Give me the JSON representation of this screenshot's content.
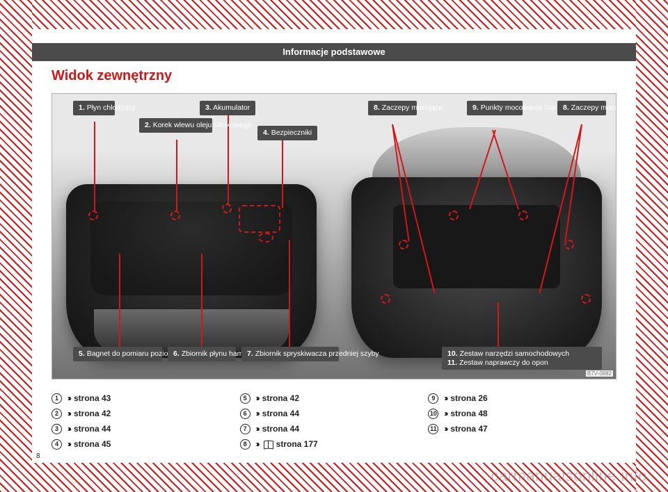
{
  "header": {
    "title": "Informacje podstawowe"
  },
  "section_title": "Widok zewnętrzny",
  "figure_id": "B7V-0882",
  "labels": {
    "l1": {
      "num": "1.",
      "text": "Płyn\nchłodzący"
    },
    "l2": {
      "num": "2.",
      "text": "Korek wlewu\noleju silnikowego"
    },
    "l3": {
      "num": "3.",
      "text": "Akumulator"
    },
    "l4": {
      "num": "4.",
      "text": "Bezpieczniki"
    },
    "l5": {
      "num": "5.",
      "text": "Bagnet do pomiaru\npoziomu oleju"
    },
    "l6": {
      "num": "6.",
      "text": "Zbiornik płynu\nhamulcowego"
    },
    "l7": {
      "num": "7.",
      "text": "Zbiornik spryskiwacza\nprzedniej szyby"
    },
    "l8": {
      "num": "8.",
      "text": "Zaczepy\nmocujące"
    },
    "l9": {
      "num": "9.",
      "text": "Punkty\nmocowania\nTop Tether"
    },
    "l10": {
      "num": "10.",
      "text": "Zestaw narzędzi samochodowych"
    },
    "l11": {
      "num": "11.",
      "text": "Zestaw naprawczy do opon"
    }
  },
  "xrefs": {
    "col1": [
      {
        "n": "1",
        "text": "strona 43"
      },
      {
        "n": "2",
        "text": "strona 42"
      },
      {
        "n": "3",
        "text": "strona 44"
      },
      {
        "n": "4",
        "text": "strona 45"
      }
    ],
    "col2": [
      {
        "n": "5",
        "text": "strona 42"
      },
      {
        "n": "6",
        "text": "strona 44"
      },
      {
        "n": "7",
        "text": "strona 44"
      },
      {
        "n": "8",
        "text": "strona 177",
        "book": true
      }
    ],
    "col3": [
      {
        "n": "9",
        "text": "strona 26"
      },
      {
        "n": "10",
        "text": "strona 48"
      },
      {
        "n": "11",
        "text": "strona 47"
      }
    ]
  },
  "page_number": "8",
  "watermark": "carmanualsonline.info",
  "colors": {
    "accent": "#d01818",
    "header_bg": "#4b4b4b",
    "label_bg": "#4b4b4b",
    "page_bg": "#ffffff"
  }
}
